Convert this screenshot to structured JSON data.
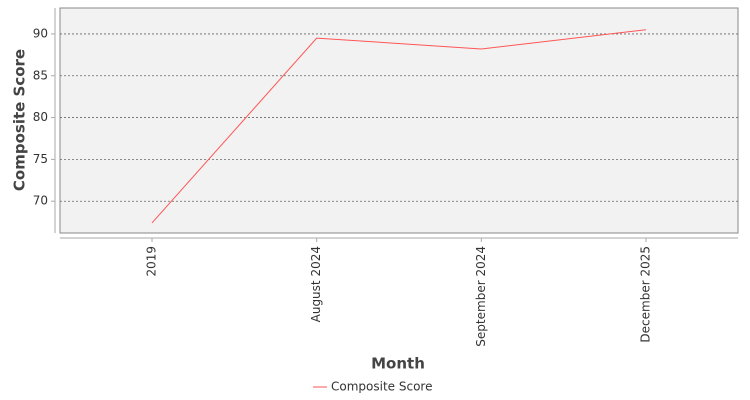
{
  "chart_data": {
    "type": "line",
    "x_label": "Month",
    "y_label": "Composite Score",
    "categories": [
      "2019",
      "August 2024",
      "September 2024",
      "December 2025"
    ],
    "series": [
      {
        "name": "Composite Score",
        "color": "#ff5555",
        "values": [
          67.4,
          89.5,
          88.2,
          90.5
        ]
      }
    ],
    "ylim": [
      66.2,
      93.1
    ],
    "yticks": [
      70,
      75,
      80,
      85,
      90
    ],
    "grid": true,
    "legend": "bottom"
  }
}
